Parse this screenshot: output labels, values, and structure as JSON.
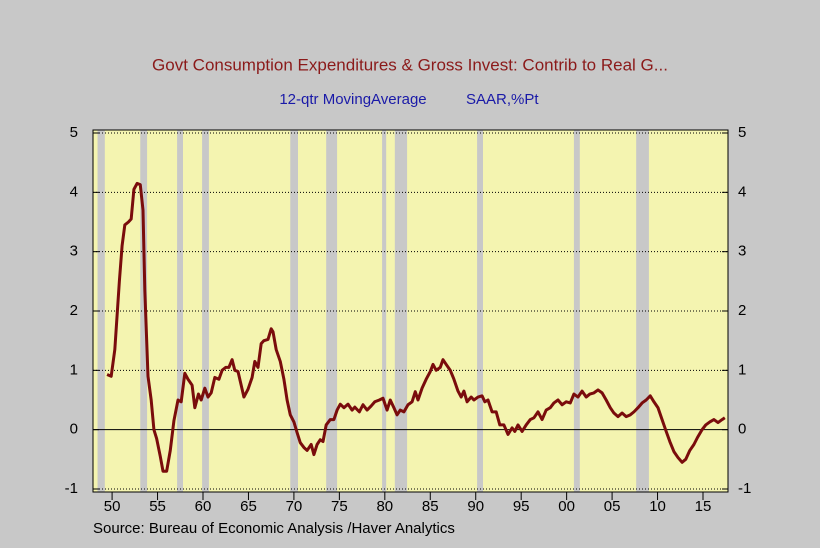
{
  "chart_data": {
    "type": "line",
    "title": "Govt Consumption Expenditures & Gross Invest: Contrib to Real G...",
    "subtitle": [
      "12-qtr MovingAverage",
      "SAAR,%Pt"
    ],
    "source": "Source:  Bureau of Economic Analysis /Haver Analytics",
    "color": "#7a0c0c",
    "shade_color": "#c8c8c8",
    "shaded_periods": [
      [
        1948.4,
        1949.2
      ],
      [
        1953.1,
        1953.85
      ],
      [
        1957.15,
        1957.8
      ],
      [
        1959.9,
        1960.65
      ],
      [
        1969.6,
        1970.45
      ],
      [
        1973.55,
        1974.75
      ],
      [
        1979.7,
        1980.15
      ],
      [
        1981.1,
        1982.45
      ],
      [
        1990.15,
        1990.8
      ],
      [
        2000.8,
        2001.45
      ],
      [
        2007.65,
        2009.05
      ]
    ],
    "x": [
      1949.45,
      1949.9,
      1950.3,
      1950.8,
      1951.1,
      1951.4,
      1951.8,
      1952.1,
      1952.4,
      1952.75,
      1953.1,
      1953.4,
      1953.6,
      1953.95,
      1954.3,
      1954.6,
      1954.9,
      1955.3,
      1955.6,
      1956.0,
      1956.4,
      1956.8,
      1957.25,
      1957.6,
      1958.0,
      1958.35,
      1958.8,
      1959.1,
      1959.5,
      1959.8,
      1960.2,
      1960.55,
      1960.9,
      1961.3,
      1961.75,
      1962.1,
      1962.5,
      1962.85,
      1963.2,
      1963.5,
      1963.85,
      1964.2,
      1964.5,
      1964.95,
      1965.4,
      1965.7,
      1966.05,
      1966.4,
      1966.7,
      1967.15,
      1967.5,
      1967.7,
      1968.05,
      1968.5,
      1968.9,
      1969.25,
      1969.6,
      1970.0,
      1970.35,
      1970.7,
      1971.1,
      1971.45,
      1971.9,
      1972.2,
      1972.55,
      1972.9,
      1973.2,
      1973.55,
      1974.0,
      1974.4,
      1974.75,
      1975.1,
      1975.5,
      1975.95,
      1976.4,
      1976.7,
      1977.2,
      1977.6,
      1978.05,
      1978.5,
      1978.9,
      1979.4,
      1979.8,
      1980.25,
      1980.6,
      1981.0,
      1981.35,
      1981.7,
      1982.1,
      1982.55,
      1983.0,
      1983.35,
      1983.65,
      1984.1,
      1984.55,
      1985.0,
      1985.3,
      1985.65,
      1986.1,
      1986.4,
      1986.75,
      1987.2,
      1987.6,
      1988.05,
      1988.4,
      1988.7,
      1989.05,
      1989.5,
      1989.8,
      1990.25,
      1990.7,
      1991.0,
      1991.35,
      1991.8,
      1992.25,
      1992.65,
      1993.1,
      1993.55,
      1994.0,
      1994.3,
      1994.65,
      1995.1,
      1995.55,
      1996.0,
      1996.4,
      1996.85,
      1997.3,
      1997.75,
      1998.2,
      1998.6,
      1999.05,
      1999.5,
      1999.95,
      2000.4,
      2000.8,
      2001.25,
      2001.7,
      2002.15,
      2002.55,
      2003.0,
      2003.45,
      2003.9,
      2004.35,
      2004.8,
      2005.2,
      2005.65,
      2006.1,
      2006.55,
      2007.0,
      2007.4,
      2007.85,
      2008.3,
      2008.75,
      2009.2,
      2009.6,
      2010.05,
      2010.5,
      2010.95,
      2011.35,
      2011.8,
      2012.25,
      2012.7,
      2013.1,
      2013.55,
      2014.0,
      2014.4,
      2014.9,
      2015.3,
      2015.75,
      2016.2,
      2016.65,
      2017.1,
      2017.4
    ],
    "values": [
      0.93,
      0.9,
      1.35,
      2.5,
      3.1,
      3.45,
      3.5,
      3.55,
      4.05,
      4.15,
      4.13,
      3.7,
      2.35,
      0.9,
      0.5,
      0.0,
      -0.15,
      -0.45,
      -0.7,
      -0.7,
      -0.35,
      0.15,
      0.5,
      0.47,
      0.95,
      0.85,
      0.75,
      0.37,
      0.6,
      0.5,
      0.7,
      0.55,
      0.62,
      0.88,
      0.85,
      1.0,
      1.05,
      1.05,
      1.18,
      1.0,
      0.98,
      0.75,
      0.55,
      0.68,
      0.88,
      1.15,
      1.05,
      1.45,
      1.5,
      1.52,
      1.7,
      1.65,
      1.35,
      1.15,
      0.85,
      0.5,
      0.25,
      0.13,
      -0.05,
      -0.22,
      -0.3,
      -0.35,
      -0.25,
      -0.42,
      -0.25,
      -0.17,
      -0.2,
      0.08,
      0.17,
      0.17,
      0.33,
      0.43,
      0.37,
      0.43,
      0.33,
      0.38,
      0.3,
      0.42,
      0.33,
      0.4,
      0.47,
      0.5,
      0.53,
      0.33,
      0.5,
      0.37,
      0.25,
      0.33,
      0.3,
      0.42,
      0.47,
      0.64,
      0.5,
      0.7,
      0.85,
      0.98,
      1.1,
      1.0,
      1.05,
      1.18,
      1.1,
      1.0,
      0.85,
      0.65,
      0.55,
      0.65,
      0.47,
      0.55,
      0.5,
      0.55,
      0.57,
      0.47,
      0.5,
      0.3,
      0.3,
      0.08,
      0.08,
      -0.08,
      0.03,
      -0.03,
      0.08,
      -0.03,
      0.08,
      0.17,
      0.2,
      0.3,
      0.17,
      0.33,
      0.37,
      0.45,
      0.5,
      0.42,
      0.47,
      0.45,
      0.6,
      0.55,
      0.65,
      0.55,
      0.6,
      0.62,
      0.67,
      0.62,
      0.5,
      0.37,
      0.28,
      0.22,
      0.28,
      0.22,
      0.25,
      0.3,
      0.37,
      0.45,
      0.5,
      0.57,
      0.47,
      0.37,
      0.17,
      -0.03,
      -0.2,
      -0.37,
      -0.47,
      -0.55,
      -0.5,
      -0.35,
      -0.25,
      -0.13,
      0.0,
      0.08,
      0.13,
      0.17,
      0.12,
      0.17,
      0.2
    ],
    "xlim": [
      1947.9,
      2017.75
    ],
    "xticks": [
      {
        "value": 1950,
        "label": "50"
      },
      {
        "value": 1955,
        "label": "55"
      },
      {
        "value": 1960,
        "label": "60"
      },
      {
        "value": 1965,
        "label": "65"
      },
      {
        "value": 1970,
        "label": "70"
      },
      {
        "value": 1975,
        "label": "75"
      },
      {
        "value": 1980,
        "label": "80"
      },
      {
        "value": 1985,
        "label": "85"
      },
      {
        "value": 1990,
        "label": "90"
      },
      {
        "value": 1995,
        "label": "95"
      },
      {
        "value": 2000,
        "label": "00"
      },
      {
        "value": 2005,
        "label": "05"
      },
      {
        "value": 2010,
        "label": "10"
      },
      {
        "value": 2015,
        "label": "15"
      }
    ],
    "ylim": [
      -1,
      5
    ],
    "yticks": [
      -1,
      0,
      1,
      2,
      3,
      4,
      5
    ],
    "grid": true
  }
}
